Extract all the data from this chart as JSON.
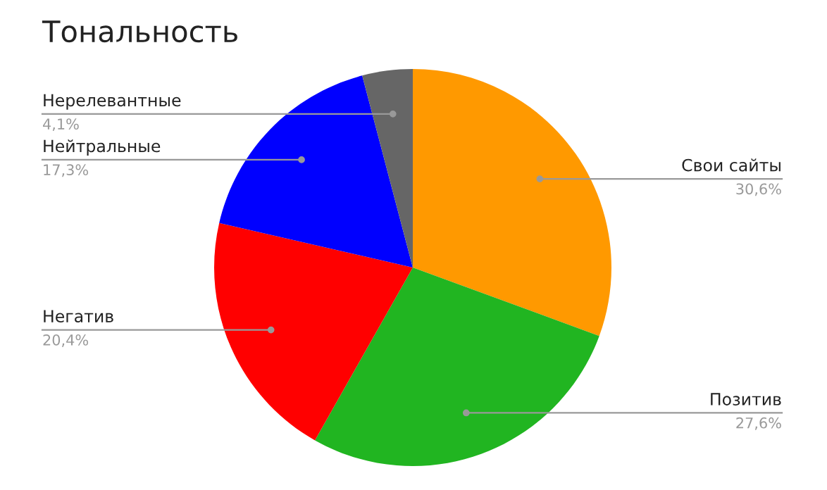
{
  "chart_data": {
    "type": "pie",
    "title": "Тональность",
    "categories": [
      "Свои сайты",
      "Позитив",
      "Негатив",
      "Нейтральные",
      "Нерелевантные"
    ],
    "values": [
      30.6,
      27.6,
      20.4,
      17.3,
      4.1
    ],
    "value_labels": [
      "30,6%",
      "27,6%",
      "20,4%",
      "17,3%",
      "4,1%"
    ],
    "colors": [
      "#ff9900",
      "#21b521",
      "#ff0000",
      "#0000ff",
      "#666666"
    ]
  }
}
